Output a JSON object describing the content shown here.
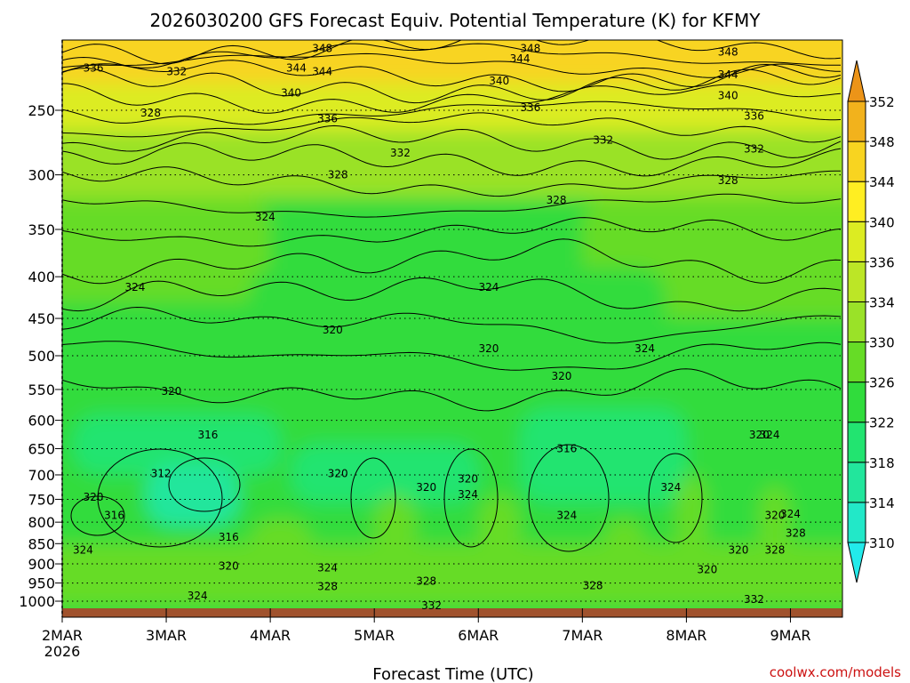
{
  "chart_data": {
    "type": "heatmap",
    "title": "2026030200 GFS Forecast Equiv. Potential Temperature (K) for KFMY",
    "xlabel": "Forecast Time (UTC)",
    "ylabel": "",
    "x_ticks": [
      "2MAR",
      "3MAR",
      "4MAR",
      "5MAR",
      "6MAR",
      "7MAR",
      "8MAR",
      "9MAR"
    ],
    "x_year": "2026",
    "x_range_days": [
      0,
      7.5
    ],
    "y_ticks": [
      250,
      300,
      350,
      400,
      450,
      500,
      550,
      600,
      650,
      700,
      750,
      800,
      850,
      900,
      950,
      1000
    ],
    "y_range": [
      200,
      1013
    ],
    "y_scale": "log-pressure",
    "colorbar": {
      "ticks": [
        310,
        314,
        318,
        322,
        326,
        330,
        334,
        336,
        340,
        344,
        348,
        352
      ],
      "colors": [
        "#22eaea",
        "#22e8c8",
        "#22e69c",
        "#22e470",
        "#30dc3c",
        "#66dc26",
        "#9ae228",
        "#bce626",
        "#dcec22",
        "#ffee22",
        "#f8d420",
        "#f2b21c",
        "#ec9418"
      ]
    },
    "contour_labels": [
      {
        "t": 2.5,
        "p": 210,
        "v": 348
      },
      {
        "t": 2.5,
        "p": 224,
        "v": 344
      },
      {
        "t": 0.3,
        "p": 222,
        "v": 336
      },
      {
        "t": 1.1,
        "p": 224,
        "v": 332
      },
      {
        "t": 2.25,
        "p": 222,
        "v": 344
      },
      {
        "t": 2.2,
        "p": 238,
        "v": 340
      },
      {
        "t": 0.85,
        "p": 252,
        "v": 328
      },
      {
        "t": 2.55,
        "p": 256,
        "v": 336
      },
      {
        "t": 4.2,
        "p": 230,
        "v": 340
      },
      {
        "t": 4.4,
        "p": 216,
        "v": 344
      },
      {
        "t": 4.5,
        "p": 210,
        "v": 348
      },
      {
        "t": 4.5,
        "p": 248,
        "v": 336
      },
      {
        "t": 3.25,
        "p": 282,
        "v": 332
      },
      {
        "t": 5.2,
        "p": 272,
        "v": 332
      },
      {
        "t": 2.65,
        "p": 300,
        "v": 328
      },
      {
        "t": 4.75,
        "p": 322,
        "v": 328
      },
      {
        "t": 1.95,
        "p": 338,
        "v": 324
      },
      {
        "t": 0.7,
        "p": 412,
        "v": 324
      },
      {
        "t": 4.1,
        "p": 412,
        "v": 324
      },
      {
        "t": 2.6,
        "p": 465,
        "v": 320
      },
      {
        "t": 4.1,
        "p": 490,
        "v": 320
      },
      {
        "t": 5.6,
        "p": 490,
        "v": 324
      },
      {
        "t": 6.4,
        "p": 212,
        "v": 348
      },
      {
        "t": 6.4,
        "p": 226,
        "v": 344
      },
      {
        "t": 6.4,
        "p": 240,
        "v": 340
      },
      {
        "t": 6.65,
        "p": 254,
        "v": 336
      },
      {
        "t": 6.65,
        "p": 279,
        "v": 332
      },
      {
        "t": 6.4,
        "p": 305,
        "v": 328
      },
      {
        "t": 4.8,
        "p": 530,
        "v": 320
      },
      {
        "t": 1.05,
        "p": 553,
        "v": 320
      },
      {
        "t": 1.4,
        "p": 625,
        "v": 316
      },
      {
        "t": 4.85,
        "p": 650,
        "v": 316
      },
      {
        "t": 0.95,
        "p": 697,
        "v": 312
      },
      {
        "t": 2.65,
        "p": 697,
        "v": 320
      },
      {
        "t": 3.5,
        "p": 725,
        "v": 320
      },
      {
        "t": 3.9,
        "p": 708,
        "v": 320
      },
      {
        "t": 3.9,
        "p": 740,
        "v": 324
      },
      {
        "t": 5.85,
        "p": 725,
        "v": 324
      },
      {
        "t": 6.7,
        "p": 625,
        "v": 320
      },
      {
        "t": 6.8,
        "p": 625,
        "v": 324
      },
      {
        "t": 0.3,
        "p": 745,
        "v": 320
      },
      {
        "t": 0.5,
        "p": 785,
        "v": 316
      },
      {
        "t": 1.6,
        "p": 835,
        "v": 316
      },
      {
        "t": 4.85,
        "p": 785,
        "v": 324
      },
      {
        "t": 6.85,
        "p": 785,
        "v": 320
      },
      {
        "t": 7.0,
        "p": 782,
        "v": 324
      },
      {
        "t": 0.2,
        "p": 865,
        "v": 324
      },
      {
        "t": 1.6,
        "p": 905,
        "v": 320
      },
      {
        "t": 2.55,
        "p": 910,
        "v": 324
      },
      {
        "t": 6.2,
        "p": 915,
        "v": 320
      },
      {
        "t": 6.85,
        "p": 865,
        "v": 328
      },
      {
        "t": 6.5,
        "p": 865,
        "v": 320
      },
      {
        "t": 7.05,
        "p": 825,
        "v": 328
      },
      {
        "t": 2.55,
        "p": 960,
        "v": 328
      },
      {
        "t": 3.5,
        "p": 945,
        "v": 328
      },
      {
        "t": 5.1,
        "p": 957,
        "v": 328
      },
      {
        "t": 1.3,
        "p": 985,
        "v": 324
      },
      {
        "t": 3.55,
        "p": 1013,
        "v": 332
      },
      {
        "t": 6.65,
        "p": 995,
        "v": 332
      }
    ]
  },
  "footer": {
    "credit": "coolwx.com/models"
  }
}
